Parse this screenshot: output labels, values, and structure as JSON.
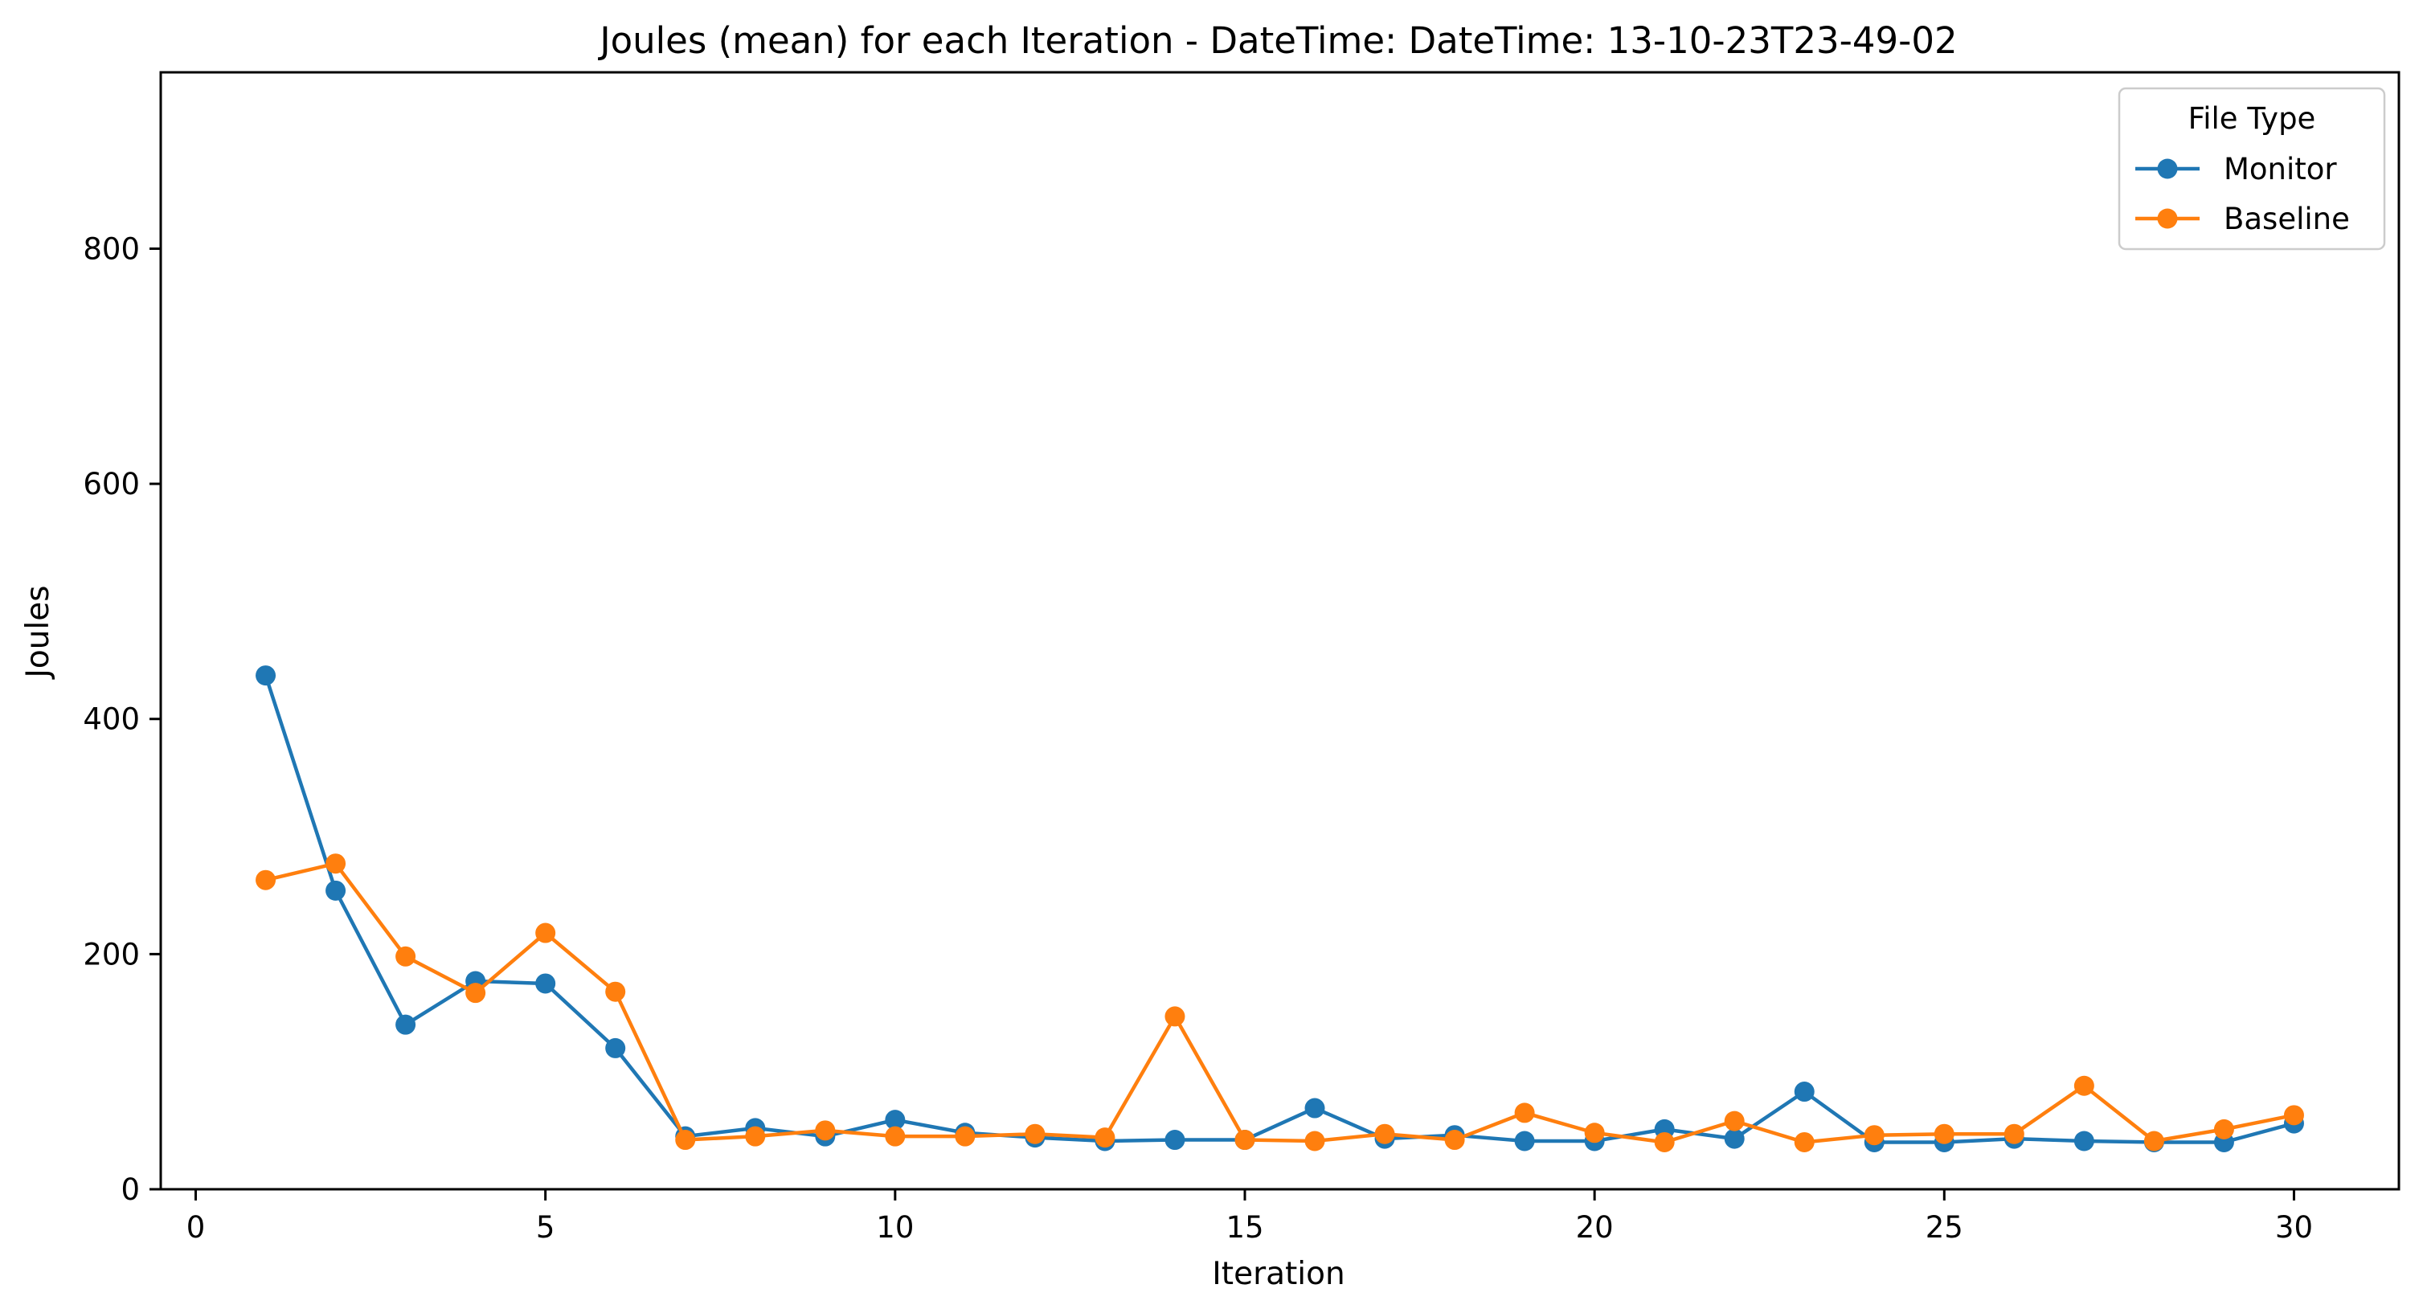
{
  "chart_data": {
    "type": "line",
    "title": "Joules (mean) for each Iteration - DateTime: DateTime: 13-10-23T23-49-02",
    "xlabel": "Iteration",
    "ylabel": "Joules",
    "xlim": [
      -0.5,
      31.5
    ],
    "ylim": [
      0,
      950
    ],
    "xticks": [
      0,
      5,
      10,
      15,
      20,
      25,
      30
    ],
    "yticks": [
      0,
      200,
      400,
      600,
      800
    ],
    "grid": false,
    "legend": {
      "title": "File Type",
      "placement": "top-right"
    },
    "x": [
      1,
      2,
      3,
      4,
      5,
      6,
      7,
      8,
      9,
      10,
      11,
      12,
      13,
      14,
      15,
      16,
      17,
      18,
      19,
      20,
      21,
      22,
      23,
      24,
      25,
      26,
      27,
      28,
      29,
      30
    ],
    "series": [
      {
        "name": "Monitor",
        "color": "#1f77b4",
        "values": [
          437,
          254,
          140,
          177,
          175,
          120,
          45,
          52,
          45,
          59,
          48,
          44,
          41,
          42,
          42,
          69,
          43,
          46,
          41,
          41,
          51,
          43,
          83,
          40,
          40,
          43,
          41,
          40,
          40,
          56
        ]
      },
      {
        "name": "Baseline",
        "color": "#ff7f0e",
        "values": [
          263,
          277,
          198,
          167,
          218,
          168,
          42,
          45,
          50,
          45,
          45,
          47,
          44,
          147,
          42,
          41,
          47,
          42,
          65,
          48,
          40,
          58,
          40,
          46,
          47,
          47,
          88,
          41,
          51,
          63
        ]
      }
    ]
  }
}
